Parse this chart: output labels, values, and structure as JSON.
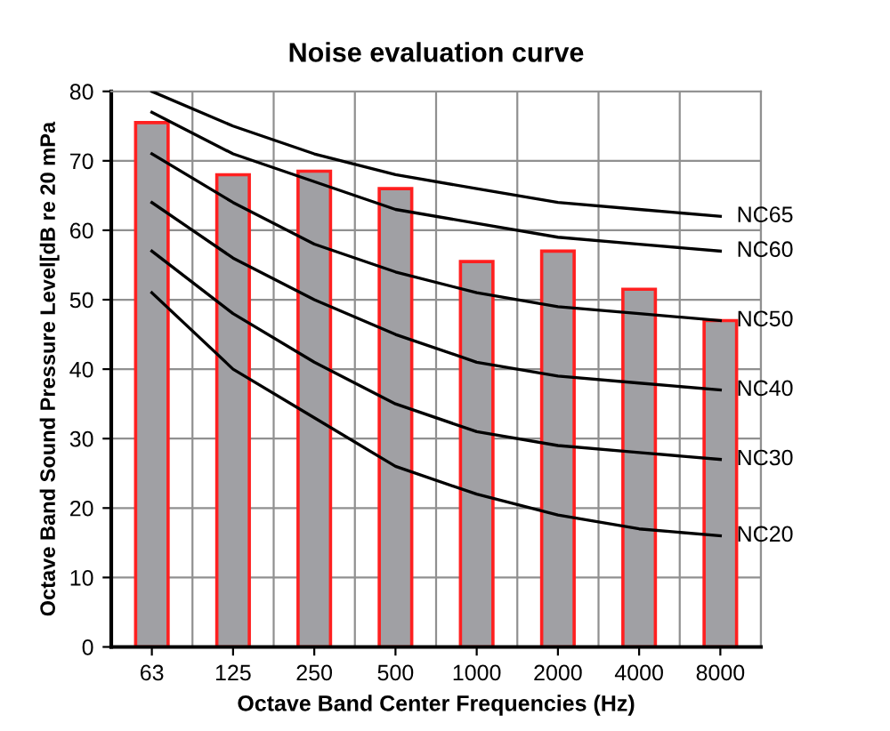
{
  "chart_data": {
    "type": "bar",
    "title": "Noise evaluation curve",
    "xlabel": "Octave Band Center Frequencies (Hz)",
    "ylabel": "Octave Band Sound Pressure Level[dB re 20 mPa",
    "categories": [
      "63",
      "125",
      "250",
      "500",
      "1000",
      "2000",
      "4000",
      "8000"
    ],
    "series": [
      {
        "color": "#a0a0a4",
        "values": [
          75.5,
          68,
          68.5,
          66,
          55.5,
          57,
          51.5,
          47
        ]
      },
      {
        "type": "line",
        "name": "NC65",
        "color": "#000000",
        "values": [
          80,
          75,
          71,
          68,
          66,
          64,
          63,
          62
        ]
      },
      {
        "type": "line",
        "name": "NC60",
        "color": "#000000",
        "values": [
          77,
          71,
          67,
          63,
          61,
          59,
          58,
          57
        ]
      },
      {
        "type": "line",
        "name": "NC50",
        "color": "#000000",
        "values": [
          71,
          64,
          58,
          54,
          51,
          49,
          48,
          47
        ]
      },
      {
        "type": "line",
        "name": "NC40",
        "color": "#000000",
        "values": [
          64,
          56,
          50,
          45,
          41,
          39,
          38,
          37
        ]
      },
      {
        "type": "line",
        "name": "NC30",
        "color": "#000000",
        "values": [
          57,
          48,
          41,
          35,
          31,
          29,
          28,
          27
        ]
      },
      {
        "type": "line",
        "name": "NC20",
        "color": "#000000",
        "values": [
          51,
          40,
          33,
          26,
          22,
          19,
          17,
          16
        ]
      }
    ],
    "ylim": [
      0,
      80
    ],
    "yticks": [
      0,
      10,
      20,
      30,
      40,
      50,
      60,
      70,
      80
    ],
    "grid": true
  }
}
